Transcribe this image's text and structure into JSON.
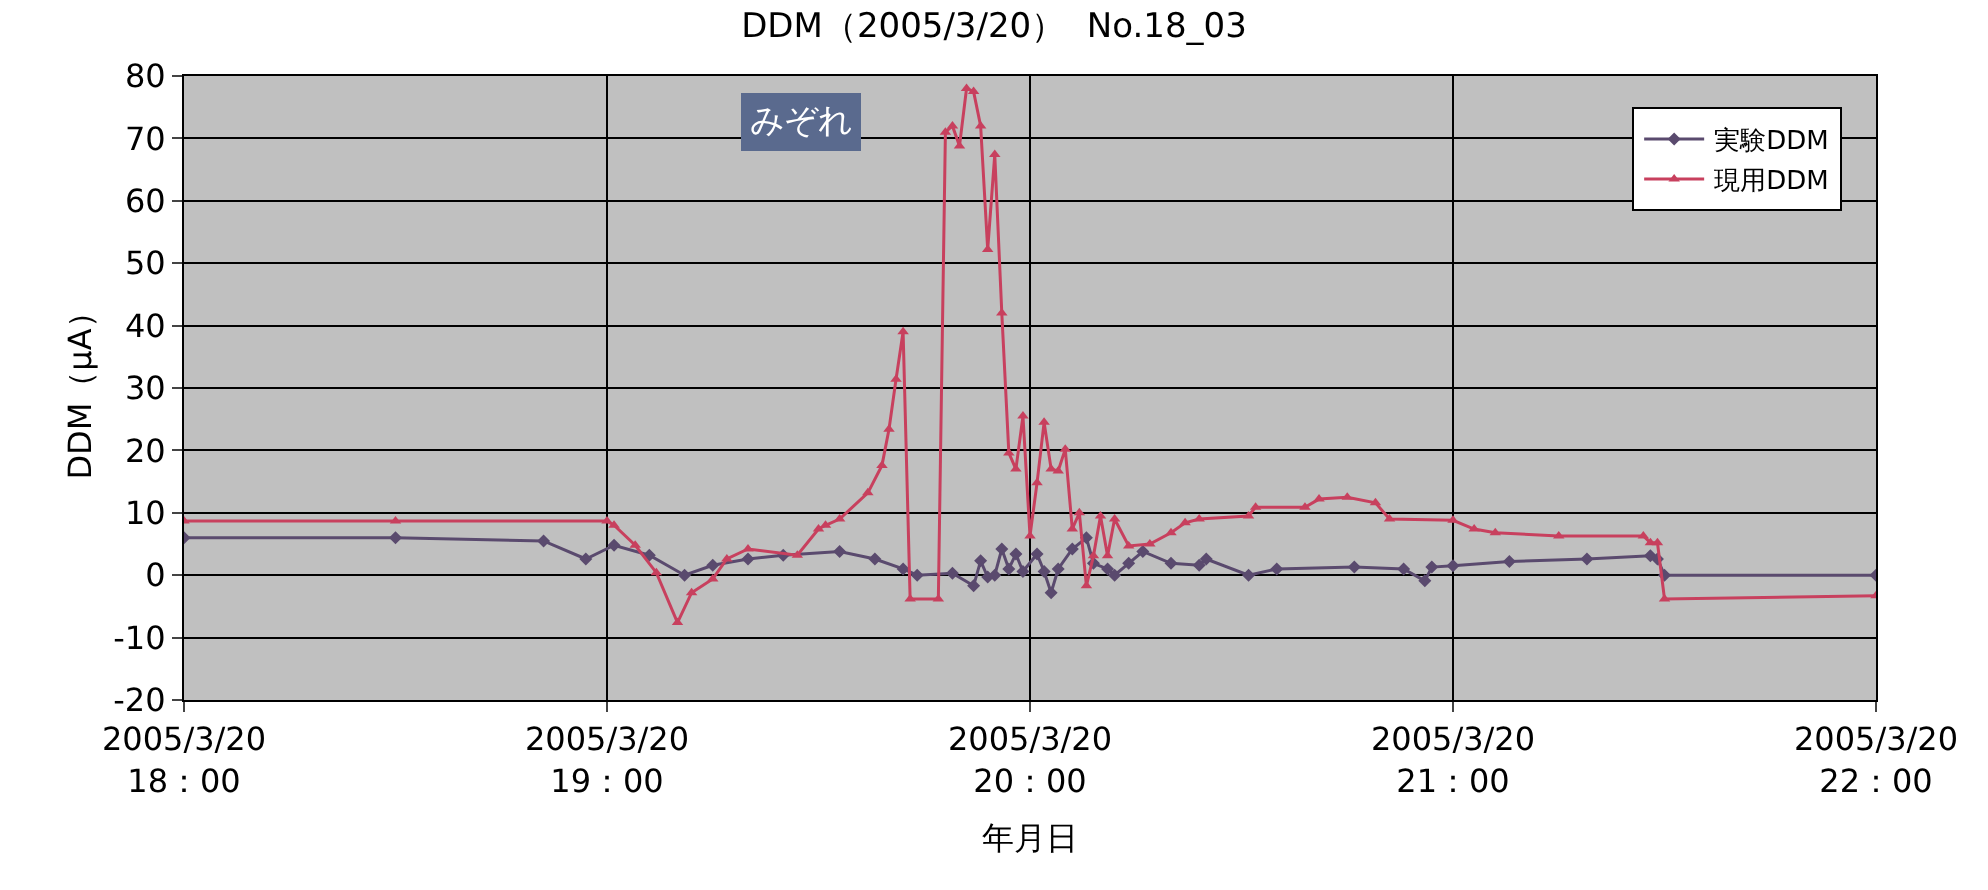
{
  "chart_data": {
    "type": "line",
    "title": "DDM（2005/3/20）  No.18_03",
    "xlabel": "年月日",
    "ylabel": "DDM（μA）",
    "annotations": [
      "みぞれ"
    ],
    "xlim": [
      "2005-03-20T18:00",
      "2005-03-20T22:00"
    ],
    "xticks": [
      {
        "value": "2005-03-20T18:00",
        "label": "2005/3/20\n18：00"
      },
      {
        "value": "2005-03-20T19:00",
        "label": "2005/3/20\n19：00"
      },
      {
        "value": "2005-03-20T20:00",
        "label": "2005/3/20\n20：00"
      },
      {
        "value": "2005-03-20T21:00",
        "label": "2005/3/20\n21：00"
      },
      {
        "value": "2005-03-20T22:00",
        "label": "2005/3/20\n22：00"
      }
    ],
    "ylim": [
      -20,
      80
    ],
    "yticks": [
      -20,
      -10,
      0,
      10,
      20,
      30,
      40,
      50,
      60,
      70,
      80
    ],
    "grid": true,
    "legend": "top right",
    "series": [
      {
        "name": "実験DDM",
        "color": "#5a4a6e",
        "marker": "diamond",
        "x": [
          "2005-03-20T18:00",
          "2005-03-20T18:30",
          "2005-03-20T18:51",
          "2005-03-20T18:57",
          "2005-03-20T19:01",
          "2005-03-20T19:06",
          "2005-03-20T19:11",
          "2005-03-20T19:15",
          "2005-03-20T19:20",
          "2005-03-20T19:25",
          "2005-03-20T19:33",
          "2005-03-20T19:38",
          "2005-03-20T19:42",
          "2005-03-20T19:44",
          "2005-03-20T19:49",
          "2005-03-20T19:52",
          "2005-03-20T19:53",
          "2005-03-20T19:54",
          "2005-03-20T19:55",
          "2005-03-20T19:56",
          "2005-03-20T19:57",
          "2005-03-20T19:58",
          "2005-03-20T19:59",
          "2005-03-20T20:01",
          "2005-03-20T20:02",
          "2005-03-20T20:03",
          "2005-03-20T20:04",
          "2005-03-20T20:06",
          "2005-03-20T20:08",
          "2005-03-20T20:09",
          "2005-03-20T20:11",
          "2005-03-20T20:12",
          "2005-03-20T20:14",
          "2005-03-20T20:16",
          "2005-03-20T20:20",
          "2005-03-20T20:24",
          "2005-03-20T20:25",
          "2005-03-20T20:31",
          "2005-03-20T20:35",
          "2005-03-20T20:46",
          "2005-03-20T20:53",
          "2005-03-20T20:56",
          "2005-03-20T20:57",
          "2005-03-20T21:00",
          "2005-03-20T21:08",
          "2005-03-20T21:19",
          "2005-03-20T21:28",
          "2005-03-20T21:29",
          "2005-03-20T21:30",
          "2005-03-20T22:00"
        ],
        "values": [
          6,
          6,
          5.5,
          2.6,
          4.8,
          3.2,
          0,
          1.6,
          2.6,
          3.2,
          3.8,
          2.6,
          1,
          0,
          0.3,
          -1.7,
          2.3,
          -0.3,
          0,
          4.2,
          1,
          3.4,
          0.6,
          3.4,
          0.6,
          -2.8,
          1,
          4.2,
          6,
          1.9,
          1,
          0,
          1.9,
          3.8,
          1.9,
          1.6,
          2.6,
          0,
          1,
          1.3,
          1,
          -0.9,
          1.3,
          1.5,
          2.2,
          2.6,
          3.1,
          2.6,
          0,
          0
        ]
      },
      {
        "name": "現用DDM",
        "color": "#c8405e",
        "marker": "triangle",
        "x": [
          "2005-03-20T18:00",
          "2005-03-20T18:30",
          "2005-03-20T19:00",
          "2005-03-20T19:01",
          "2005-03-20T19:04",
          "2005-03-20T19:07",
          "2005-03-20T19:10",
          "2005-03-20T19:12",
          "2005-03-20T19:15",
          "2005-03-20T19:17",
          "2005-03-20T19:20",
          "2005-03-20T19:27",
          "2005-03-20T19:30",
          "2005-03-20T19:31",
          "2005-03-20T19:33",
          "2005-03-20T19:37",
          "2005-03-20T19:39",
          "2005-03-20T19:40",
          "2005-03-20T19:41",
          "2005-03-20T19:42",
          "2005-03-20T19:43",
          "2005-03-20T19:47",
          "2005-03-20T19:48",
          "2005-03-20T19:49",
          "2005-03-20T19:50",
          "2005-03-20T19:51",
          "2005-03-20T19:52",
          "2005-03-20T19:53",
          "2005-03-20T19:54",
          "2005-03-20T19:55",
          "2005-03-20T19:56",
          "2005-03-20T19:57",
          "2005-03-20T19:58",
          "2005-03-20T19:59",
          "2005-03-20T20:00",
          "2005-03-20T20:01",
          "2005-03-20T20:02",
          "2005-03-20T20:03",
          "2005-03-20T20:04",
          "2005-03-20T20:05",
          "2005-03-20T20:06",
          "2005-03-20T20:07",
          "2005-03-20T20:08",
          "2005-03-20T20:09",
          "2005-03-20T20:10",
          "2005-03-20T20:11",
          "2005-03-20T20:12",
          "2005-03-20T20:14",
          "2005-03-20T20:17",
          "2005-03-20T20:20",
          "2005-03-20T20:22",
          "2005-03-20T20:24",
          "2005-03-20T20:31",
          "2005-03-20T20:32",
          "2005-03-20T20:39",
          "2005-03-20T20:41",
          "2005-03-20T20:45",
          "2005-03-20T20:49",
          "2005-03-20T20:51",
          "2005-03-20T21:00",
          "2005-03-20T21:03",
          "2005-03-20T21:06",
          "2005-03-20T21:15",
          "2005-03-20T21:27",
          "2005-03-20T21:28",
          "2005-03-20T21:29",
          "2005-03-20T21:30",
          "2005-03-20T22:00"
        ],
        "values": [
          8.7,
          8.7,
          8.7,
          8,
          4.8,
          0.4,
          -7.6,
          -2.8,
          -0.6,
          2.6,
          4.2,
          3.2,
          7.4,
          8,
          9,
          13.2,
          17.6,
          23.4,
          31.4,
          39,
          -3.8,
          -3.8,
          71,
          72,
          68.8,
          78,
          77.5,
          72,
          52.2,
          67.4,
          42,
          19.6,
          17,
          25.5,
          6.3,
          14.8,
          24.5,
          17,
          16.7,
          20.2,
          7.4,
          10,
          -1.7,
          3.1,
          9.5,
          3.1,
          9,
          4.7,
          5,
          6.8,
          8.4,
          9,
          9.5,
          10.9,
          10.9,
          12.2,
          12.5,
          11.6,
          9,
          8.8,
          7.4,
          6.8,
          6.3,
          6.3,
          5.2,
          5.2,
          -3.8,
          -3.3
        ]
      }
    ]
  }
}
